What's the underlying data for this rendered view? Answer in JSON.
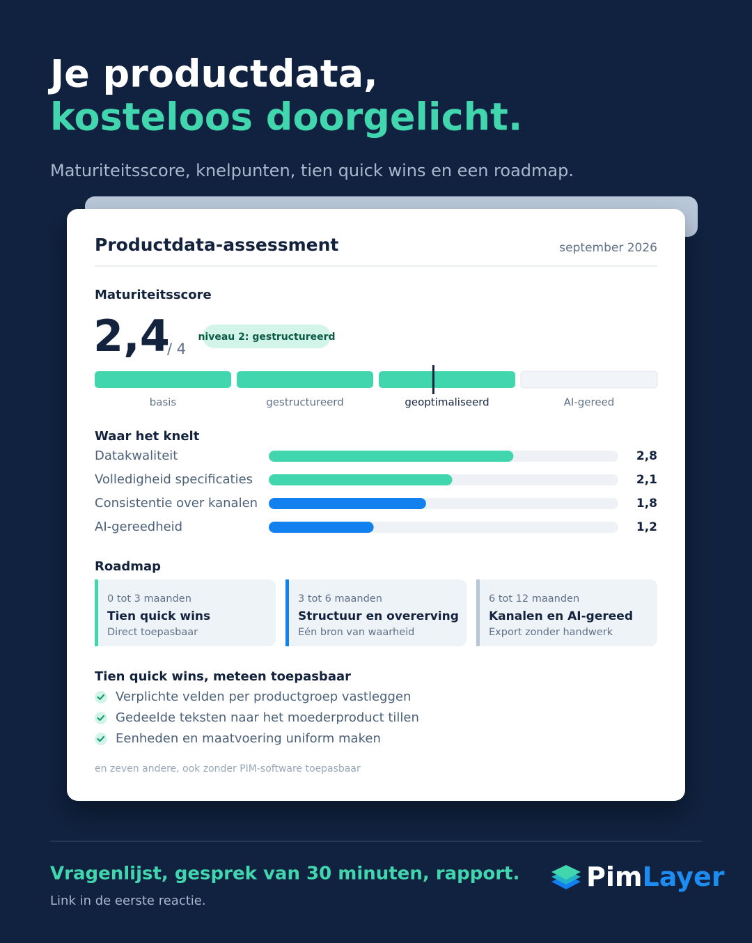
{
  "header": {
    "title_line1": "Je productdata,",
    "title_line2": "kosteloos doorgelicht.",
    "subtitle": "Maturiteitsscore, knelpunten, tien quick wins en een roadmap."
  },
  "card": {
    "title": "Productdata-assessment",
    "date": "september 2026",
    "score_heading": "Maturiteitsscore",
    "score": {
      "value": 2.4,
      "label": "2,4",
      "max": 4,
      "max_label": "/ 4"
    },
    "level_badge": "niveau 2: gestructureerd",
    "levels": [
      "basis",
      "gestructureerd",
      "geoptimaliseerd",
      "AI-gereed"
    ],
    "bottlenecks_heading": "Waar het knelt",
    "bottlenecks": [
      {
        "label": "Datakwaliteit",
        "value": 2.8,
        "value_label": "2,8",
        "color": "#41d6ad"
      },
      {
        "label": "Volledigheid specificaties",
        "value": 2.1,
        "value_label": "2,1",
        "color": "#41d6ad"
      },
      {
        "label": "Consistentie over kanalen",
        "value": 1.8,
        "value_label": "1,8",
        "color": "#1380f0"
      },
      {
        "label": "AI-gereedheid",
        "value": 1.2,
        "value_label": "1,2",
        "color": "#1380f0"
      }
    ],
    "roadmap_heading": "Roadmap",
    "roadmap": [
      {
        "period": "0 tot 3 maanden",
        "title": "Tien quick wins",
        "subtitle": "Direct toepasbaar",
        "color": "#41d6ad"
      },
      {
        "period": "3 tot 6 maanden",
        "title": "Structuur en overerving",
        "subtitle": "Eén bron van waarheid",
        "color": "#1380f0"
      },
      {
        "period": "6 tot 12 maanden",
        "title": "Kanalen en AI-gereed",
        "subtitle": "Export zonder handwerk",
        "color": "#b9c6d6"
      }
    ],
    "quick_wins_heading": "Tien quick wins, meteen toepasbaar",
    "quick_wins": [
      "Verplichte velden per productgroep vastleggen",
      "Gedeelde teksten naar het moederproduct tillen",
      "Eenheden en maatvoering uniform maken"
    ],
    "footnote": "en zeven andere, ook zonder PIM-software toepasbaar"
  },
  "footer": {
    "tagline": "Vragenlijst, gesprek van 30 minuten, rapport.",
    "cta": "Link in de eerste reactie.",
    "logo_part1": "Pim",
    "logo_part2": "Layer"
  }
}
